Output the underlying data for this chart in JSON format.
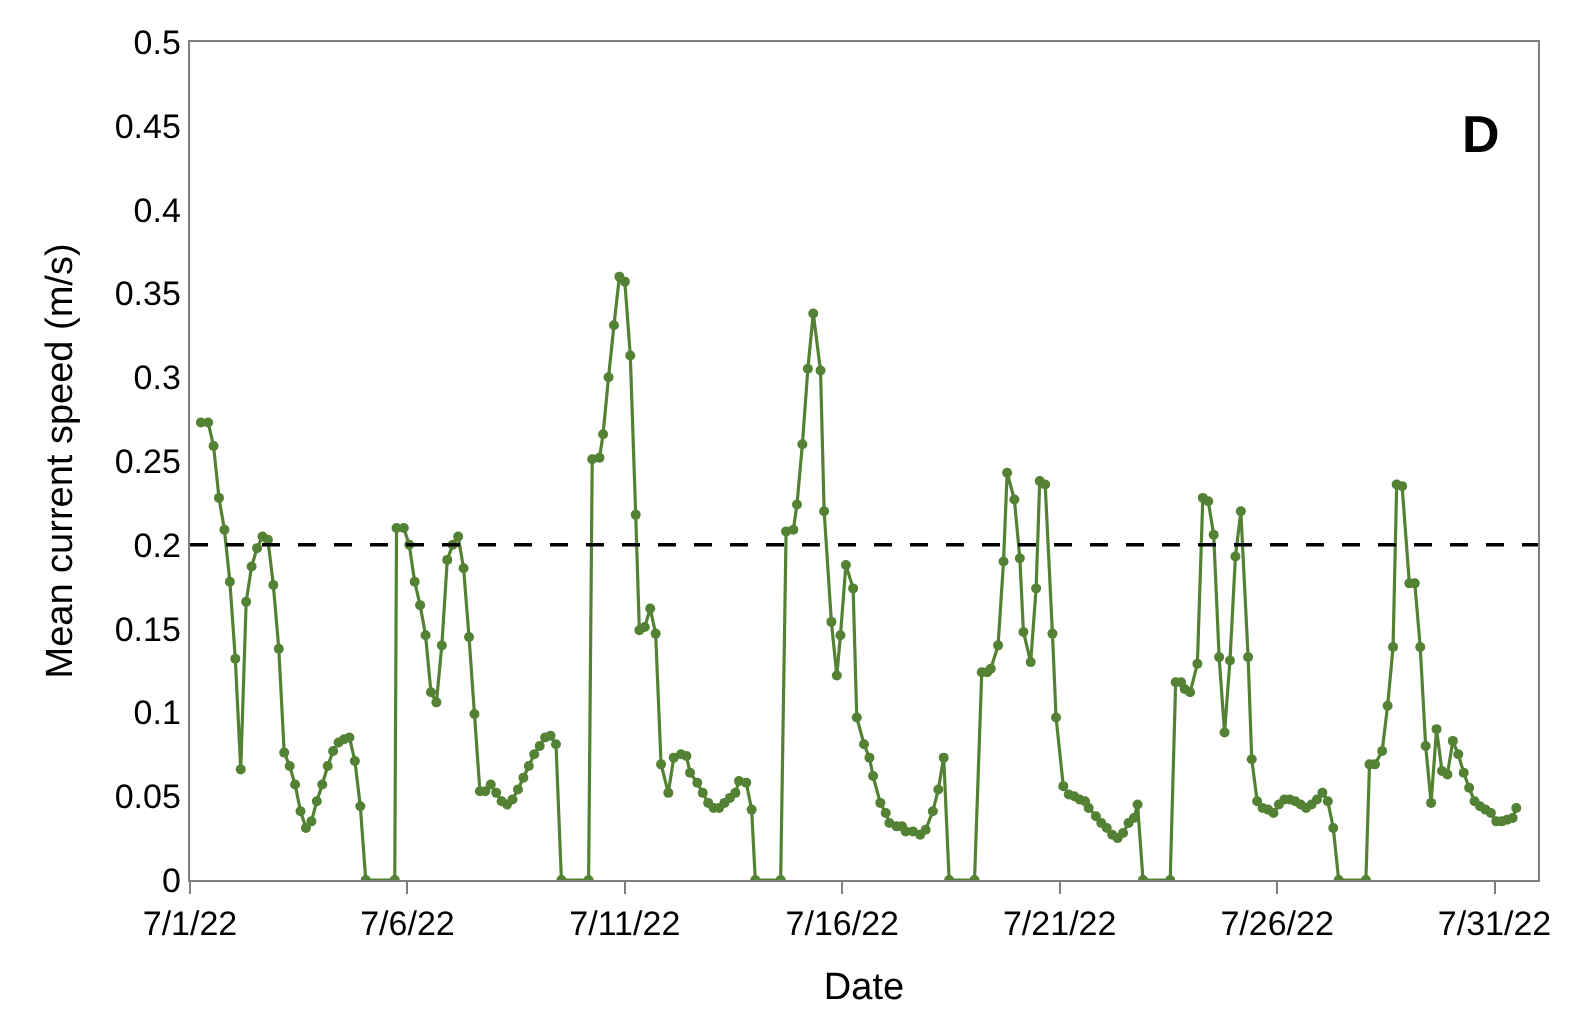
{
  "chart_data": {
    "type": "line",
    "xlabel": "Date",
    "ylabel": "Mean current speed (m/s)",
    "annotations": [
      "D"
    ],
    "marker": "circle",
    "line_style": "solid",
    "xlim": [
      "--07-01",
      "--08-01"
    ],
    "xticks": [
      {
        "value": "--07-01",
        "label": "7/1/22"
      },
      {
        "value": "--07-06",
        "label": "7/6/22"
      },
      {
        "value": "--07-11",
        "label": "7/11/22"
      },
      {
        "value": "--07-16",
        "label": "7/16/22"
      },
      {
        "value": "--07-21",
        "label": "7/21/22"
      },
      {
        "value": "--07-26",
        "label": "7/26/22"
      },
      {
        "value": "--07-31",
        "label": "7/31/22"
      }
    ],
    "ylim": [
      0,
      0.5
    ],
    "yticks": [
      0,
      0.05,
      0.1,
      0.15,
      0.2,
      0.25,
      0.3,
      0.35,
      0.4,
      0.45,
      0.5
    ],
    "ref_lines": [
      {
        "axis": "y",
        "value": 0.2,
        "color": "#000000",
        "line_style": "dashed"
      }
    ],
    "series": [
      {
        "color": "#548235",
        "x": [
          "--07-01T06:00",
          "--07-01T10:00",
          "--07-01T13:00",
          "--07-01T16:00",
          "--07-01T19:00",
          "--07-01T22:00",
          "--07-02T01:00",
          "--07-02T04:00",
          "--07-02T07:00",
          "--07-02T10:00",
          "--07-02T13:00",
          "--07-02T16:00",
          "--07-02T19:00",
          "--07-02T22:00",
          "--07-03T01:00",
          "--07-03T04:00",
          "--07-03T07:00",
          "--07-03T10:00",
          "--07-03T13:00",
          "--07-03T16:00",
          "--07-03T19:00",
          "--07-03T22:00",
          "--07-04T01:00",
          "--07-04T04:00",
          "--07-04T07:00",
          "--07-04T10:00",
          "--07-04T13:00",
          "--07-04T16:00",
          "--07-04T19:00",
          "--07-04T22:00",
          "--07-05T01:00",
          "--07-05T17:00",
          "--07-05T18:00",
          "--07-05T22:00",
          "--07-06T01:00",
          "--07-06T04:00",
          "--07-06T07:00",
          "--07-06T10:00",
          "--07-06T13:00",
          "--07-06T16:00",
          "--07-06T19:00",
          "--07-06T22:00",
          "--07-07T01:00",
          "--07-07T04:00",
          "--07-07T07:00",
          "--07-07T10:00",
          "--07-07T13:00",
          "--07-07T16:00",
          "--07-07T19:00",
          "--07-07T22:00",
          "--07-08T01:00",
          "--07-08T04:00",
          "--07-08T07:00",
          "--07-08T10:00",
          "--07-08T13:00",
          "--07-08T16:00",
          "--07-08T19:00",
          "--07-08T22:00",
          "--07-09T01:00",
          "--07-09T04:00",
          "--07-09T07:00",
          "--07-09T10:00",
          "--07-09T13:00",
          "--07-10T04:00",
          "--07-10T06:00",
          "--07-10T10:00",
          "--07-10T12:00",
          "--07-10T15:00",
          "--07-10T18:00",
          "--07-10T21:00",
          "--07-11T00:00",
          "--07-11T03:00",
          "--07-11T06:00",
          "--07-11T08:00",
          "--07-11T11:00",
          "--07-11T14:00",
          "--07-11T17:00",
          "--07-11T20:00",
          "--07-12T00:00",
          "--07-12T03:00",
          "--07-12T07:00",
          "--07-12T10:00",
          "--07-12T12:00",
          "--07-12T16:00",
          "--07-12T19:00",
          "--07-12T22:00",
          "--07-13T01:00",
          "--07-13T04:00",
          "--07-13T07:00",
          "--07-13T10:00",
          "--07-13T13:00",
          "--07-13T15:00",
          "--07-13T19:00",
          "--07-13T22:00",
          "--07-14T00:00",
          "--07-14T14:00",
          "--07-14T17:00",
          "--07-14T21:00",
          "--07-14T23:00",
          "--07-15T02:00",
          "--07-15T05:00",
          "--07-15T08:00",
          "--07-15T12:00",
          "--07-15T14:00",
          "--07-15T18:00",
          "--07-15T21:00",
          "--07-15T23:00",
          "--07-16T02:00",
          "--07-16T06:00",
          "--07-16T08:00",
          "--07-16T12:00",
          "--07-16T15:00",
          "--07-16T17:00",
          "--07-16T21:00",
          "--07-17T00:00",
          "--07-17T02:00",
          "--07-17T06:00",
          "--07-17T09:00",
          "--07-17T11:00",
          "--07-17T15:00",
          "--07-17T19:00",
          "--07-17T22:00",
          "--07-18T02:00",
          "--07-18T05:00",
          "--07-18T08:00",
          "--07-18T11:00",
          "--07-19T01:00",
          "--07-19T05:00",
          "--07-19T08:00",
          "--07-19T10:00",
          "--07-19T14:00",
          "--07-19T17:00",
          "--07-19T19:00",
          "--07-19T23:00",
          "--07-20T02:00",
          "--07-20T04:00",
          "--07-20T08:00",
          "--07-20T11:00",
          "--07-20T13:00",
          "--07-20T16:00",
          "--07-20T20:00",
          "--07-20T22:00",
          "--07-21T02:00",
          "--07-21T05:00",
          "--07-21T08:00",
          "--07-21T11:00",
          "--07-21T14:00",
          "--07-21T16:00",
          "--07-21T20:00",
          "--07-21T23:00",
          "--07-22T02:00",
          "--07-22T05:00",
          "--07-22T08:00",
          "--07-22T11:00",
          "--07-22T14:00",
          "--07-22T17:00",
          "--07-22T19:00",
          "--07-22T22:00",
          "--07-23T13:00",
          "--07-23T16:00",
          "--07-23T19:00",
          "--07-23T21:00",
          "--07-24T00:00",
          "--07-24T04:00",
          "--07-24T07:00",
          "--07-24T10:00",
          "--07-24T13:00",
          "--07-24T16:00",
          "--07-24T19:00",
          "--07-24T22:00",
          "--07-25T01:00",
          "--07-25T04:00",
          "--07-25T08:00",
          "--07-25T10:00",
          "--07-25T13:00",
          "--07-25T16:00",
          "--07-25T19:00",
          "--07-25T22:00",
          "--07-26T01:00",
          "--07-26T04:00",
          "--07-26T07:00",
          "--07-26T10:00",
          "--07-26T13:00",
          "--07-26T16:00",
          "--07-26T19:00",
          "--07-26T22:00",
          "--07-27T01:00",
          "--07-27T04:00",
          "--07-27T07:00",
          "--07-27T10:00",
          "--07-28T01:00",
          "--07-28T03:00",
          "--07-28T06:00",
          "--07-28T10:00",
          "--07-28T13:00",
          "--07-28T16:00",
          "--07-28T18:00",
          "--07-28T21:00",
          "--07-29T01:00",
          "--07-29T04:00",
          "--07-29T07:00",
          "--07-29T10:00",
          "--07-29T13:00",
          "--07-29T16:00",
          "--07-29T19:00",
          "--07-29T22:00",
          "--07-30T01:00",
          "--07-30T04:00",
          "--07-30T07:00",
          "--07-30T10:00",
          "--07-30T13:00",
          "--07-30T16:00",
          "--07-30T19:00",
          "--07-30T22:00",
          "--07-31T01:00",
          "--07-31T04:00",
          "--07-31T07:00",
          "--07-31T10:00",
          "--07-31T12:00"
        ],
        "values": [
          0.273,
          0.273,
          0.259,
          0.228,
          0.209,
          0.178,
          0.132,
          0.066,
          0.166,
          0.187,
          0.198,
          0.205,
          0.203,
          0.176,
          0.138,
          0.076,
          0.068,
          0.057,
          0.041,
          0.031,
          0.035,
          0.047,
          0.057,
          0.068,
          0.077,
          0.082,
          0.084,
          0.085,
          0.071,
          0.044,
          0,
          0,
          0.21,
          0.21,
          0.2,
          0.178,
          0.164,
          0.146,
          0.112,
          0.106,
          0.14,
          0.191,
          0.2,
          0.205,
          0.186,
          0.145,
          0.099,
          0.053,
          0.053,
          0.057,
          0.052,
          0.047,
          0.045,
          0.048,
          0.054,
          0.061,
          0.068,
          0.075,
          0.08,
          0.085,
          0.086,
          0.081,
          0,
          0,
          0.251,
          0.252,
          0.266,
          0.3,
          0.331,
          0.36,
          0.357,
          0.313,
          0.218,
          0.149,
          0.151,
          0.162,
          0.147,
          0.069,
          0.052,
          0.073,
          0.075,
          0.074,
          0.064,
          0.058,
          0.052,
          0.046,
          0.043,
          0.043,
          0.046,
          0.049,
          0.052,
          0.059,
          0.058,
          0.042,
          0,
          0,
          0.208,
          0.209,
          0.224,
          0.26,
          0.305,
          0.338,
          0.304,
          0.22,
          0.154,
          0.122,
          0.146,
          0.188,
          0.174,
          0.097,
          0.081,
          0.073,
          0.062,
          0.046,
          0.04,
          0.034,
          0.032,
          0.032,
          0.029,
          0.029,
          0.027,
          0.03,
          0.041,
          0.054,
          0.073,
          0,
          0,
          0.124,
          0.124,
          0.126,
          0.14,
          0.19,
          0.243,
          0.227,
          0.192,
          0.148,
          0.13,
          0.174,
          0.238,
          0.236,
          0.147,
          0.097,
          0.056,
          0.051,
          0.05,
          0.048,
          0.047,
          0.043,
          0.038,
          0.034,
          0.031,
          0.027,
          0.025,
          0.028,
          0.034,
          0.037,
          0.045,
          0,
          0,
          0.118,
          0.118,
          0.114,
          0.112,
          0.129,
          0.228,
          0.226,
          0.206,
          0.133,
          0.088,
          0.131,
          0.193,
          0.22,
          0.133,
          0.072,
          0.047,
          0.043,
          0.042,
          0.04,
          0.045,
          0.048,
          0.048,
          0.047,
          0.045,
          0.043,
          0.045,
          0.048,
          0.052,
          0.047,
          0.031,
          0,
          0,
          0.069,
          0.069,
          0.077,
          0.104,
          0.139,
          0.236,
          0.235,
          0.177,
          0.177,
          0.139,
          0.08,
          0.046,
          0.09,
          0.065,
          0.063,
          0.083,
          0.075,
          0.064,
          0.055,
          0.047,
          0.044,
          0.042,
          0.04,
          0.035,
          0.035,
          0.036,
          0.037,
          0.043
        ]
      }
    ]
  }
}
